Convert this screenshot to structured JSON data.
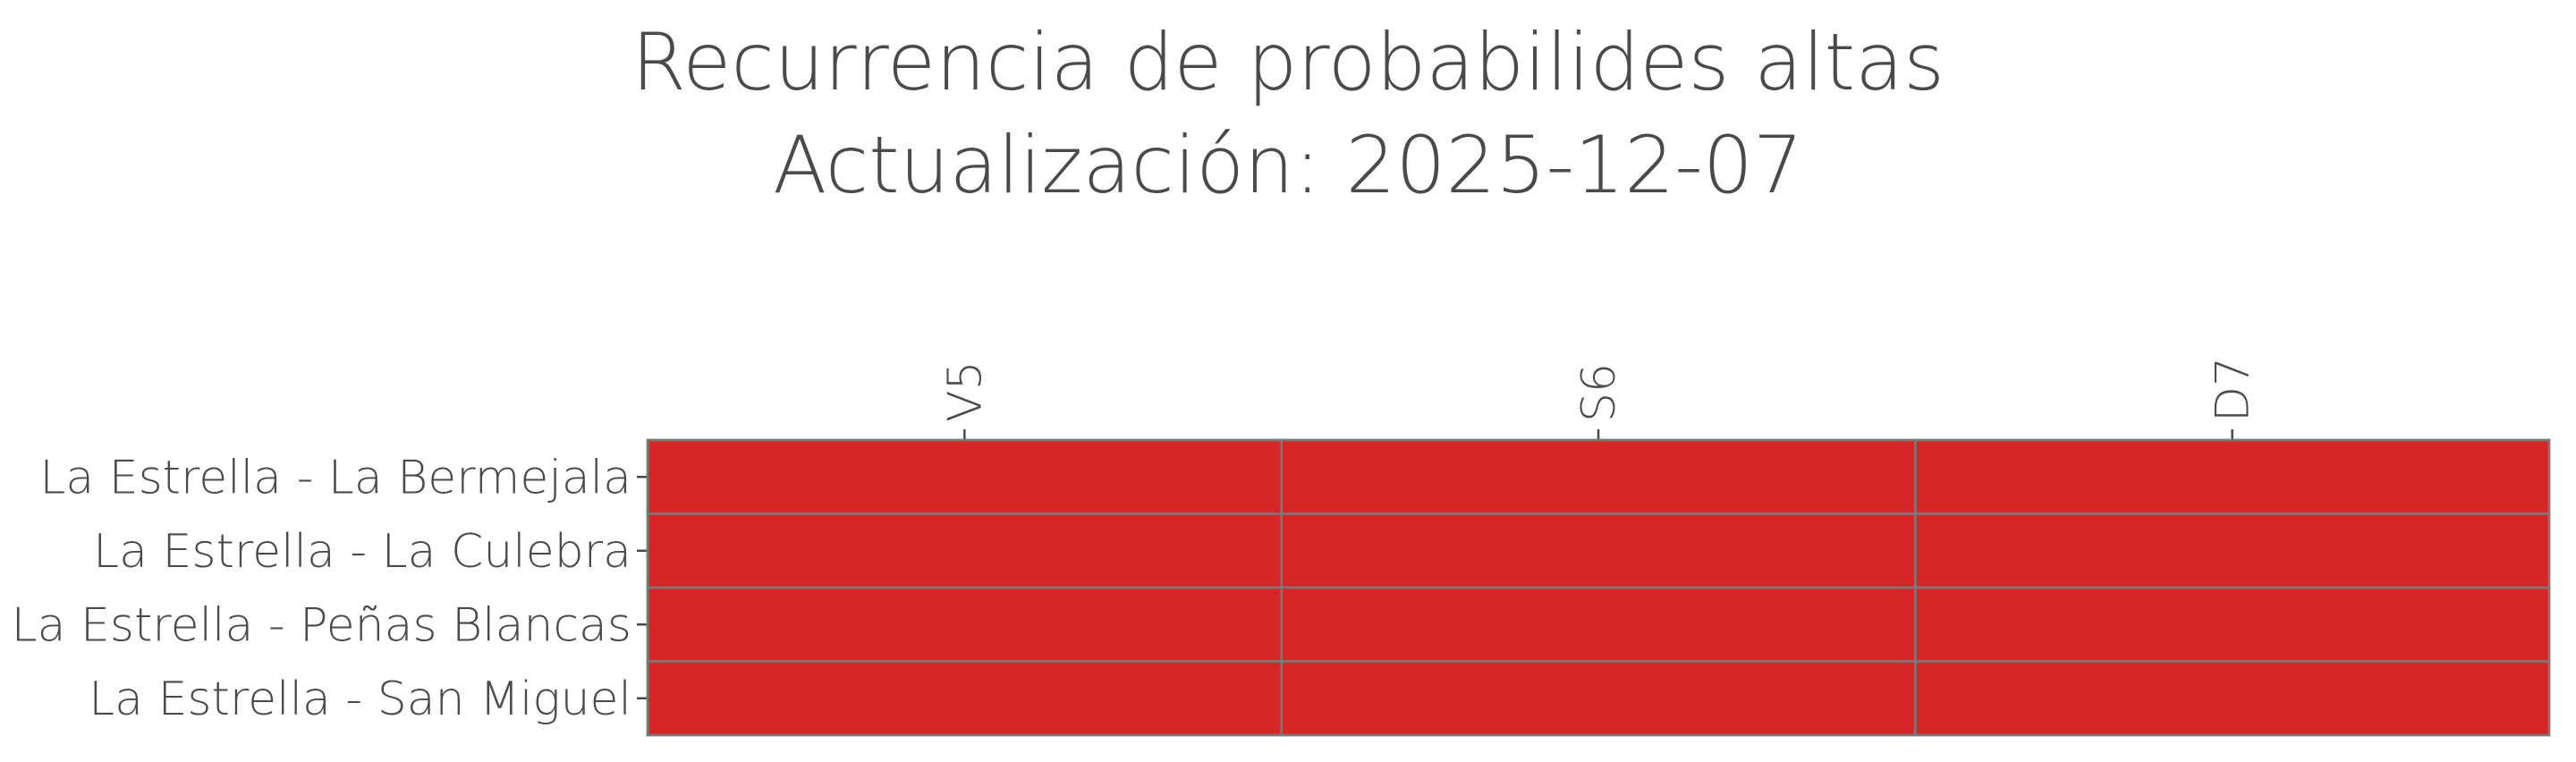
{
  "chart_data": {
    "type": "heatmap",
    "title_lines": [
      "Recurrencia de probabilides altas",
      "Actualización: 2025-12-07"
    ],
    "x_categories": [
      "V5",
      "S6",
      "D7"
    ],
    "y_categories": [
      "La Estrella - La Bermejala",
      "La Estrella - La Culebra",
      "La Estrella - Peñas Blancas",
      "La Estrella - San Miguel"
    ],
    "values": [
      [
        "alta",
        "alta",
        "alta"
      ],
      [
        "alta",
        "alta",
        "alta"
      ],
      [
        "alta",
        "alta",
        "alta"
      ],
      [
        "alta",
        "alta",
        "alta"
      ]
    ],
    "colors": {
      "alta": "#d62728",
      "grid": "#7a7a7a",
      "text": "#4a4a4a"
    },
    "x_axis_position": "top",
    "grid": true,
    "legend": "none"
  }
}
